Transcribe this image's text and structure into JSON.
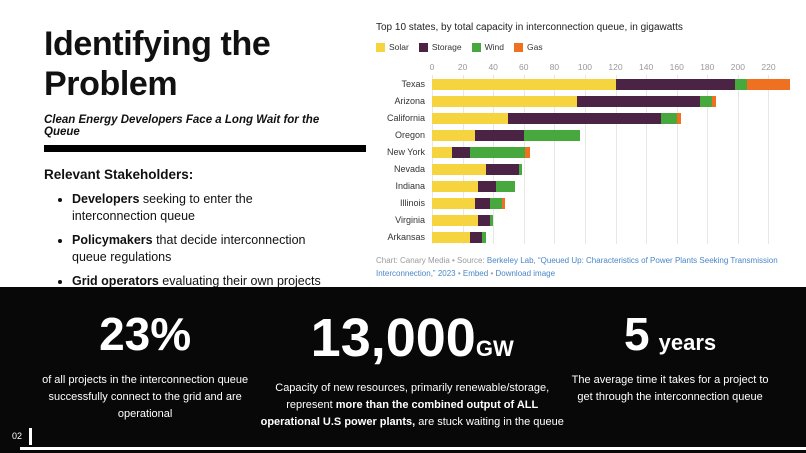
{
  "slide": {
    "title_line1": "Identifying the",
    "title_line2": "Problem",
    "subtitle": "Clean Energy Developers Face a Long Wait for the Queue",
    "stakeholders_heading": "Relevant Stakeholders:",
    "bullets": [
      {
        "bold": "Developers",
        "rest": " seeking to enter the interconnection queue"
      },
      {
        "bold": "Policymakers",
        "rest": " that decide interconnection queue regulations"
      },
      {
        "bold": "Grid operators",
        "rest": " evaluating their own projects and maintaining reliable operations"
      }
    ],
    "page_number": "02"
  },
  "chart": {
    "attribution": {
      "prefix": "Chart: Canary Media • Source: ",
      "source_link": "Berkeley Lab, “Queued Up: Characteristics of Power Plants Seeking Transmission Interconnection,” 2023",
      "sep1": " • ",
      "embed_link": "Embed",
      "sep2": " • ",
      "download_link": "Download image"
    }
  },
  "chart_data": {
    "type": "bar",
    "orientation": "horizontal",
    "title": "Top 10 states, by total capacity in interconnection queue, in gigawatts",
    "categories": [
      "Texas",
      "Arizona",
      "California",
      "Oregon",
      "New York",
      "Nevada",
      "Indiana",
      "Illinois",
      "Virginia",
      "Arkansas"
    ],
    "series": [
      {
        "name": "Solar",
        "color": "#f5d440",
        "values": [
          120,
          95,
          50,
          28,
          13,
          35,
          30,
          28,
          30,
          25
        ]
      },
      {
        "name": "Storage",
        "color": "#4b2344",
        "values": [
          78,
          80,
          100,
          32,
          12,
          22,
          12,
          10,
          8,
          8
        ]
      },
      {
        "name": "Wind",
        "color": "#47a83e",
        "values": [
          8,
          8,
          10,
          37,
          36,
          2,
          12,
          8,
          2,
          2
        ]
      },
      {
        "name": "Gas",
        "color": "#ef7020",
        "values": [
          28,
          3,
          3,
          0,
          3,
          0,
          0,
          2,
          0,
          0
        ]
      }
    ],
    "xticks": [
      0,
      20,
      40,
      60,
      80,
      100,
      120,
      140,
      160,
      180,
      200,
      220
    ],
    "xmax": 238,
    "legend_position": "top",
    "grid": true
  },
  "stats": [
    {
      "value": "23%",
      "desc": "of all projects in the interconnection queue successfully connect to the grid and are operational"
    },
    {
      "value": "13,000",
      "unit": "GW",
      "desc_part1": "Capacity of new resources, primarily renewable/storage, represent ",
      "desc_bold": "more than the combined output of ALL operational U.S power plants,",
      "desc_part2": " are stuck waiting in the queue"
    },
    {
      "value": "5",
      "unit": "years",
      "desc": "The average time it takes for a project to get through the interconnection queue"
    }
  ]
}
